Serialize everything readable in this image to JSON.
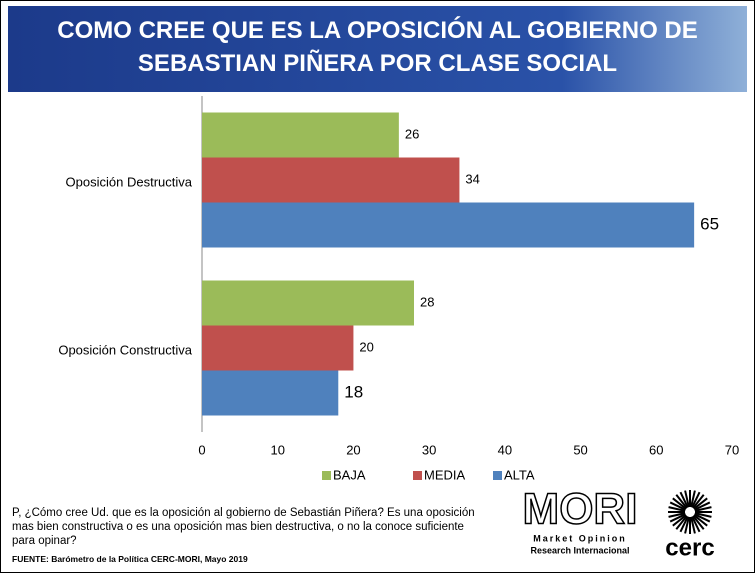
{
  "chart_data": {
    "type": "bar",
    "orientation": "horizontal",
    "title": "COMO CREE QUE ES LA OPOSICIÓN AL GOBIERNO DE SEBASTIAN PIÑERA POR CLASE SOCIAL",
    "categories": [
      "Oposición Destructiva",
      "Oposición Constructiva"
    ],
    "series": [
      {
        "name": "BAJA",
        "color": "#9bbb59",
        "values": [
          26,
          28
        ]
      },
      {
        "name": "MEDIA",
        "color": "#c0504d",
        "values": [
          34,
          20
        ]
      },
      {
        "name": "ALTA",
        "color": "#4f81bd",
        "values": [
          65,
          18
        ]
      }
    ],
    "xlim": [
      0,
      70
    ],
    "xticks": [
      0,
      10,
      20,
      30,
      40,
      50,
      60,
      70
    ],
    "grid": false,
    "legend": "bottom"
  },
  "question": "P, ¿Cómo cree Ud. que es la oposición al gobierno de Sebastián Piñera?  Es una oposición mas bien constructiva o es una oposición mas bien destructiva, o no la conoce suficiente para opinar?",
  "source": "FUENTE: Barómetro de la Política CERC-MORI, Mayo 2019",
  "logos": {
    "mori": "MORI",
    "mori_line1": "Market Opinion",
    "mori_line2": "Research Internacional",
    "cerc": "cerc"
  }
}
